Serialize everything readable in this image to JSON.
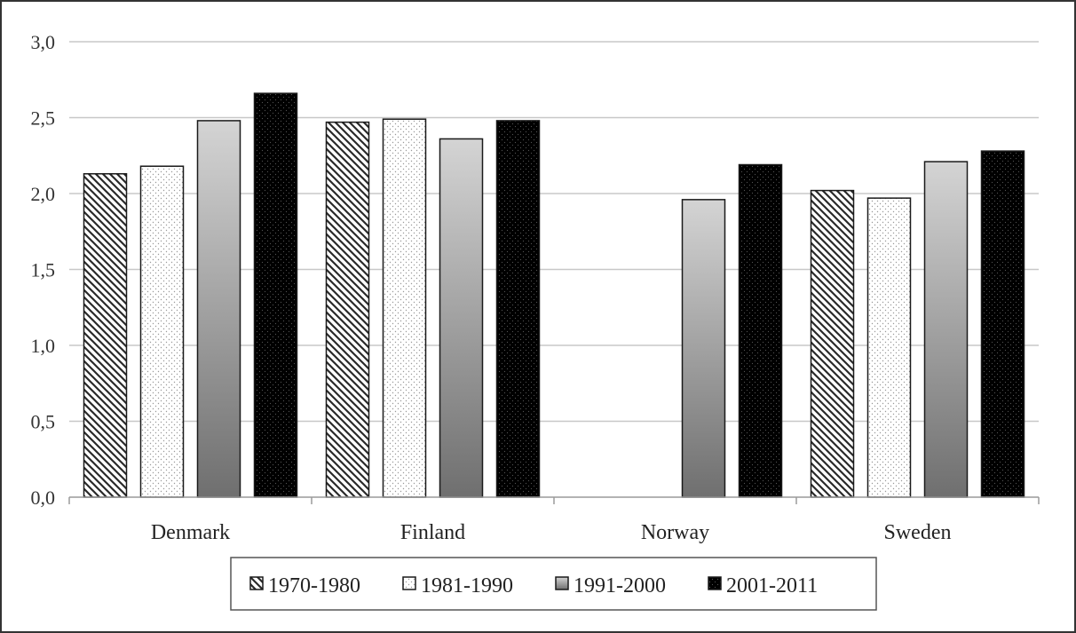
{
  "chart_data": {
    "type": "bar",
    "title": "",
    "xlabel": "",
    "ylabel": "",
    "categories": [
      "Denmark",
      "Finland",
      "Norway",
      "Sweden"
    ],
    "series": [
      {
        "name": "1970-1980",
        "values": [
          2.13,
          2.47,
          null,
          2.02
        ],
        "fill": "hatch",
        "color": "#333333"
      },
      {
        "name": "1981-1990",
        "values": [
          2.18,
          2.49,
          null,
          1.97
        ],
        "fill": "dots",
        "color": "#ffffff"
      },
      {
        "name": "1991-2000",
        "values": [
          2.48,
          2.36,
          1.96,
          2.21
        ],
        "fill": "gradient",
        "color": "#8c8c8c"
      },
      {
        "name": "2001-2011",
        "values": [
          2.66,
          2.48,
          2.19,
          2.28
        ],
        "fill": "dark-dots",
        "color": "#000000"
      }
    ],
    "ylim": [
      0,
      3
    ],
    "yticks": [
      "0,0",
      "0,5",
      "1,0",
      "1,5",
      "2,0",
      "2,5",
      "3,0"
    ],
    "grid": true,
    "legend_position": "bottom"
  }
}
